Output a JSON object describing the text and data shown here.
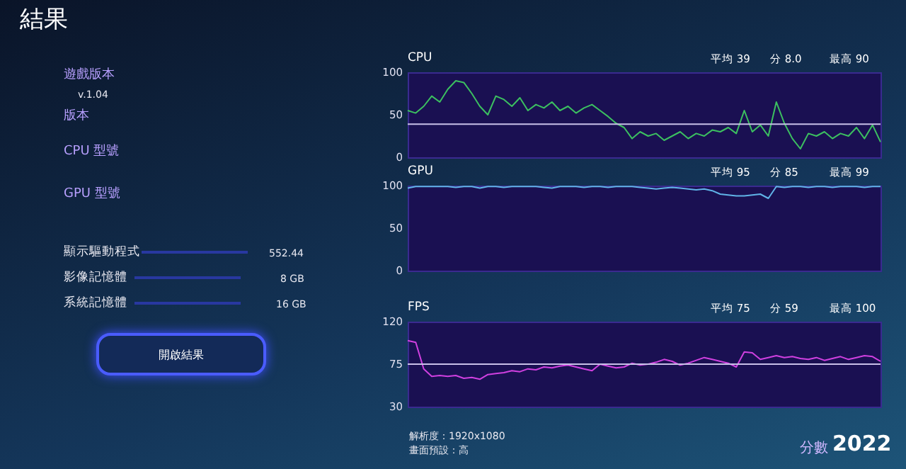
{
  "chart_data": [
    {
      "type": "other",
      "title": "結果",
      "annotations": [
        "遊戲版本",
        "v.1.04",
        "版本",
        "CPU 型號",
        "GPU 型號",
        "顯示驅動程式",
        "552.44",
        "影像記憶體",
        "8 GB",
        "系統記憶體",
        "16 GB",
        "開啟結果",
        "解析度：1920x1080",
        "畫面預設：高",
        "分數",
        "2022"
      ]
    },
    {
      "type": "line",
      "title": "CPU",
      "annotations": [
        "平均 39",
        "分 8.0",
        "最高 90"
      ],
      "categories": [
        null,
        null,
        null,
        null,
        null,
        null,
        null,
        null,
        null,
        null,
        null,
        null,
        null,
        null,
        null,
        null,
        null,
        null,
        null,
        null,
        null,
        null,
        null,
        null,
        null,
        null,
        null,
        null,
        null,
        null,
        null,
        null,
        null,
        null,
        null,
        null,
        null,
        null,
        null,
        null,
        null,
        null,
        null,
        null,
        null,
        null,
        null,
        null,
        null,
        null,
        null,
        null,
        null,
        null,
        null,
        null,
        null,
        null,
        null,
        null
      ],
      "series": [
        {
          "color": "#3cc060",
          "values": [
            55,
            52,
            60,
            72,
            65,
            80,
            90,
            88,
            75,
            60,
            50,
            72,
            68,
            60,
            70,
            55,
            62,
            58,
            65,
            55,
            60,
            52,
            58,
            62,
            55,
            48,
            40,
            35,
            22,
            30,
            25,
            28,
            20,
            25,
            30,
            22,
            28,
            25,
            32,
            30,
            35,
            28,
            55,
            30,
            38,
            25,
            65,
            40,
            22,
            10,
            28,
            25,
            30,
            22,
            28,
            25,
            35,
            22,
            38,
            18
          ]
        }
      ],
      "ylim": [
        0,
        100
      ],
      "yticks": [
        0,
        50,
        100
      ],
      "ref_lines": [
        {
          "axis": "y",
          "value": 39,
          "color": "#c8c0e8"
        }
      ]
    },
    {
      "type": "line",
      "title": "GPU",
      "annotations": [
        "平均 95",
        "分 85",
        "最高 99"
      ],
      "categories": [
        null,
        null,
        null,
        null,
        null,
        null,
        null,
        null,
        null,
        null,
        null,
        null,
        null,
        null,
        null,
        null,
        null,
        null,
        null,
        null,
        null,
        null,
        null,
        null,
        null,
        null,
        null,
        null,
        null,
        null,
        null,
        null,
        null,
        null,
        null,
        null,
        null,
        null,
        null,
        null,
        null,
        null,
        null,
        null,
        null,
        null,
        null,
        null,
        null,
        null,
        null,
        null,
        null,
        null,
        null,
        null,
        null,
        null,
        null,
        null
      ],
      "series": [
        {
          "color": "#60b4e8",
          "values": [
            97,
            99,
            99,
            99,
            99,
            99,
            98,
            99,
            99,
            97,
            99,
            99,
            98,
            99,
            99,
            99,
            99,
            98,
            97,
            99,
            99,
            99,
            98,
            99,
            99,
            98,
            99,
            99,
            99,
            98,
            97,
            96,
            97,
            98,
            97,
            96,
            95,
            96,
            94,
            90,
            89,
            88,
            88,
            89,
            90,
            85,
            99,
            98,
            99,
            99,
            98,
            99,
            99,
            98,
            99,
            99,
            99,
            98,
            99,
            99
          ]
        }
      ],
      "ylim": [
        0,
        100
      ],
      "yticks": [
        0,
        50,
        100
      ]
    },
    {
      "type": "line",
      "title": "FPS",
      "annotations": [
        "平均 75",
        "分 59",
        "最高 100"
      ],
      "categories": [
        null,
        null,
        null,
        null,
        null,
        null,
        null,
        null,
        null,
        null,
        null,
        null,
        null,
        null,
        null,
        null,
        null,
        null,
        null,
        null,
        null,
        null,
        null,
        null,
        null,
        null,
        null,
        null,
        null,
        null,
        null,
        null,
        null,
        null,
        null,
        null,
        null,
        null,
        null,
        null,
        null,
        null,
        null,
        null,
        null,
        null,
        null,
        null,
        null,
        null,
        null,
        null,
        null,
        null,
        null,
        null,
        null,
        null,
        null,
        null
      ],
      "series": [
        {
          "color": "#d040e0",
          "values": [
            100,
            98,
            70,
            62,
            63,
            62,
            63,
            60,
            61,
            59,
            64,
            65,
            66,
            68,
            67,
            70,
            69,
            72,
            71,
            73,
            74,
            72,
            70,
            68,
            75,
            73,
            71,
            72,
            76,
            74,
            75,
            77,
            80,
            78,
            74,
            76,
            79,
            82,
            80,
            78,
            76,
            72,
            88,
            87,
            80,
            82,
            84,
            82,
            83,
            81,
            80,
            82,
            79,
            81,
            83,
            80,
            82,
            84,
            83,
            78
          ]
        }
      ],
      "ylim": [
        30,
        120
      ],
      "yticks": [
        30,
        75,
        120
      ],
      "ref_lines": [
        {
          "axis": "y",
          "value": 75,
          "color": "#c8c0e8"
        }
      ]
    }
  ]
}
